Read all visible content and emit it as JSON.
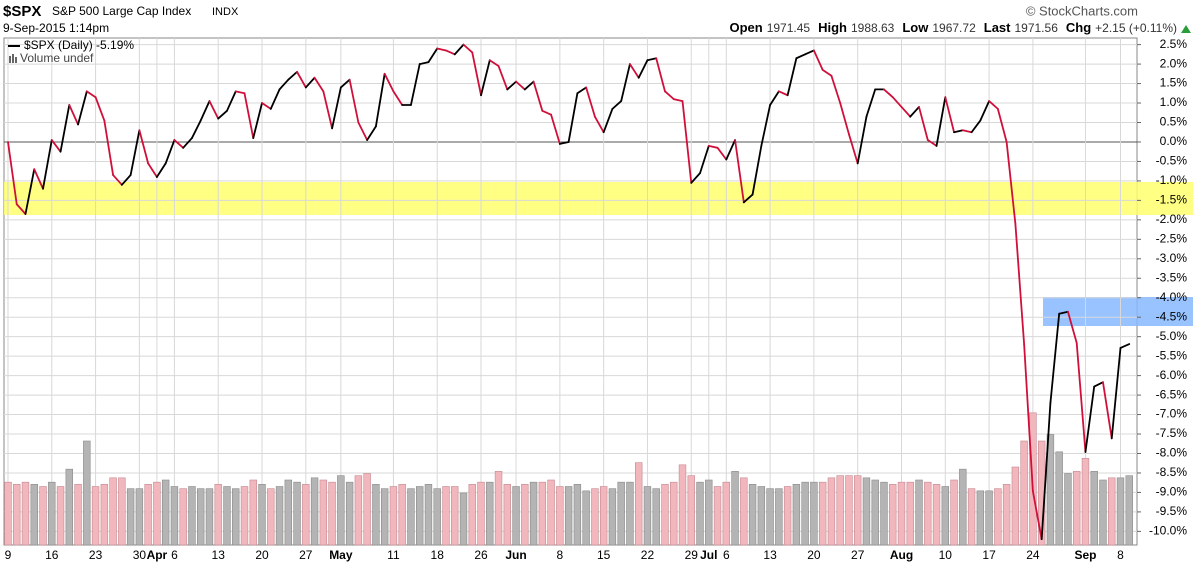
{
  "header": {
    "symbol": "$SPX",
    "name": "S&P 500 Large Cap Index",
    "exchange": "INDX",
    "copyright": "© StockCharts.com",
    "timestamp": "9-Sep-2015 1:14pm",
    "quote": [
      {
        "label": "Open",
        "value": "1971.45"
      },
      {
        "label": "High",
        "value": "1988.63"
      },
      {
        "label": "Low",
        "value": "1967.72"
      },
      {
        "label": "Last",
        "value": "1971.56"
      },
      {
        "label": "Chg",
        "value": "+2.15 (+0.11%)"
      }
    ]
  },
  "chart_data": {
    "type": "line",
    "categories": [
      "9",
      null,
      null,
      null,
      null,
      "16",
      null,
      null,
      null,
      null,
      "23",
      null,
      null,
      null,
      null,
      "30",
      null,
      "Apr",
      null,
      "6",
      null,
      null,
      null,
      null,
      "13",
      null,
      null,
      null,
      null,
      "20",
      null,
      null,
      null,
      null,
      "27",
      null,
      null,
      null,
      "May",
      null,
      null,
      null,
      null,
      null,
      "11",
      null,
      null,
      null,
      null,
      "18",
      null,
      null,
      null,
      null,
      "26",
      null,
      null,
      null,
      "Jun",
      null,
      null,
      null,
      null,
      "8",
      null,
      null,
      null,
      null,
      "15",
      null,
      null,
      null,
      null,
      "22",
      null,
      null,
      null,
      null,
      "29",
      null,
      "Jul",
      null,
      "6",
      null,
      null,
      null,
      null,
      "13",
      null,
      null,
      null,
      null,
      "20",
      null,
      null,
      null,
      null,
      "27",
      null,
      null,
      null,
      null,
      "Aug",
      null,
      null,
      null,
      null,
      "10",
      null,
      null,
      null,
      null,
      "17",
      null,
      null,
      null,
      null,
      "24",
      null,
      null,
      null,
      null,
      null,
      "Sep",
      null,
      null,
      null,
      "8",
      null
    ],
    "series": [
      {
        "name": "$SPX (Daily) -5.19%",
        "color": "#000000",
        "down_color": "#d0103a",
        "values": [
          0.0,
          -1.6,
          -1.85,
          -0.7,
          -1.2,
          0.05,
          -0.25,
          0.95,
          0.45,
          1.3,
          1.15,
          0.55,
          -0.85,
          -1.1,
          -0.85,
          0.3,
          -0.55,
          -0.9,
          -0.55,
          0.05,
          -0.15,
          0.1,
          0.55,
          1.05,
          0.6,
          0.8,
          1.3,
          1.25,
          0.1,
          1.0,
          0.85,
          1.35,
          1.6,
          1.8,
          1.4,
          1.65,
          1.3,
          0.35,
          1.4,
          1.6,
          0.5,
          0.05,
          0.4,
          1.75,
          1.3,
          0.95,
          0.95,
          2.0,
          2.05,
          2.4,
          2.35,
          2.25,
          2.5,
          2.3,
          1.2,
          2.1,
          1.95,
          1.35,
          1.55,
          1.35,
          1.55,
          0.8,
          0.7,
          -0.05,
          0.0,
          1.25,
          1.4,
          0.65,
          0.25,
          0.85,
          1.05,
          2.0,
          1.65,
          2.1,
          2.15,
          1.3,
          1.1,
          1.05,
          -1.05,
          -0.8,
          -0.1,
          -0.15,
          -0.45,
          0.05,
          -1.55,
          -1.35,
          -0.1,
          0.95,
          1.3,
          1.2,
          2.15,
          2.25,
          2.35,
          1.85,
          1.7,
          1.0,
          0.2,
          -0.55,
          0.65,
          1.35,
          1.35,
          1.15,
          0.9,
          0.65,
          0.9,
          0.05,
          -0.1,
          1.15,
          0.25,
          0.3,
          0.25,
          0.55,
          1.05,
          0.85,
          0.0,
          -2.1,
          -5.2,
          -8.97,
          -10.2,
          -6.7,
          -4.41,
          -4.36,
          -5.16,
          -7.96,
          -6.28,
          -6.17,
          -7.61,
          -5.29,
          -5.19
        ]
      }
    ],
    "volume": {
      "name": "Volume undef",
      "up_color": "#b4b4b4",
      "down_color": "#f2b6bd",
      "values": [
        2.9,
        2.8,
        2.9,
        2.8,
        2.7,
        2.9,
        2.7,
        3.5,
        2.8,
        4.8,
        2.7,
        2.8,
        3.1,
        3.1,
        2.6,
        2.6,
        2.8,
        2.9,
        3.0,
        2.7,
        2.6,
        2.7,
        2.6,
        2.6,
        2.8,
        2.7,
        2.6,
        2.7,
        3.0,
        2.8,
        2.6,
        2.7,
        3.0,
        2.9,
        2.8,
        3.1,
        3.0,
        2.9,
        3.2,
        2.9,
        3.2,
        3.3,
        2.8,
        2.6,
        2.7,
        2.8,
        2.6,
        2.7,
        2.8,
        2.6,
        2.7,
        2.7,
        2.4,
        2.8,
        2.9,
        2.9,
        3.4,
        2.8,
        2.7,
        2.8,
        2.9,
        2.9,
        3.0,
        2.7,
        2.7,
        2.8,
        2.5,
        2.6,
        2.7,
        2.6,
        2.9,
        2.9,
        3.8,
        2.7,
        2.6,
        2.8,
        2.9,
        3.7,
        3.2,
        2.9,
        3.0,
        2.7,
        2.9,
        3.4,
        3.1,
        2.8,
        2.7,
        2.6,
        2.6,
        2.7,
        2.8,
        2.9,
        2.9,
        2.9,
        3.1,
        3.2,
        3.2,
        3.2,
        3.1,
        3.0,
        2.9,
        2.8,
        2.9,
        2.9,
        3.0,
        2.9,
        2.8,
        2.7,
        3.0,
        3.5,
        2.6,
        2.5,
        2.5,
        2.6,
        2.8,
        3.6,
        4.8,
        6.1,
        4.8,
        5.1,
        4.3,
        3.3,
        3.4,
        4.0,
        3.4,
        3.0,
        3.1,
        3.1,
        3.2
      ],
      "ylim": [
        0,
        12
      ]
    },
    "ylim": [
      -10.35,
      2.67
    ],
    "yticks": [
      {
        "value": 2.5,
        "label": "2.5%"
      },
      {
        "value": 2.0,
        "label": "2.0%"
      },
      {
        "value": 1.5,
        "label": "1.5%"
      },
      {
        "value": 1.0,
        "label": "1.0%"
      },
      {
        "value": 0.5,
        "label": "0.5%"
      },
      {
        "value": 0.0,
        "label": "0.0%"
      },
      {
        "value": -0.5,
        "label": "-0.5%"
      },
      {
        "value": -1.0,
        "label": "-1.0%"
      },
      {
        "value": -1.5,
        "label": "-1.5%"
      },
      {
        "value": -2.0,
        "label": "-2.0%"
      },
      {
        "value": -2.5,
        "label": "-2.5%"
      },
      {
        "value": -3.0,
        "label": "-3.0%"
      },
      {
        "value": -3.5,
        "label": "-3.5%"
      },
      {
        "value": -4.0,
        "label": "-4.0%"
      },
      {
        "value": -4.5,
        "label": "-4.5%"
      },
      {
        "value": -5.0,
        "label": "-5.0%"
      },
      {
        "value": -5.5,
        "label": "-5.5%"
      },
      {
        "value": -6.0,
        "label": "-6.0%"
      },
      {
        "value": -6.5,
        "label": "-6.5%"
      },
      {
        "value": -7.0,
        "label": "-7.0%"
      },
      {
        "value": -7.5,
        "label": "-7.5%"
      },
      {
        "value": -8.0,
        "label": "-8.0%"
      },
      {
        "value": -8.5,
        "label": "-8.5%"
      },
      {
        "value": -9.0,
        "label": "-9.0%"
      },
      {
        "value": -9.5,
        "label": "-9.5%"
      },
      {
        "value": -10.0,
        "label": "-10.0%"
      }
    ],
    "grid": true
  }
}
